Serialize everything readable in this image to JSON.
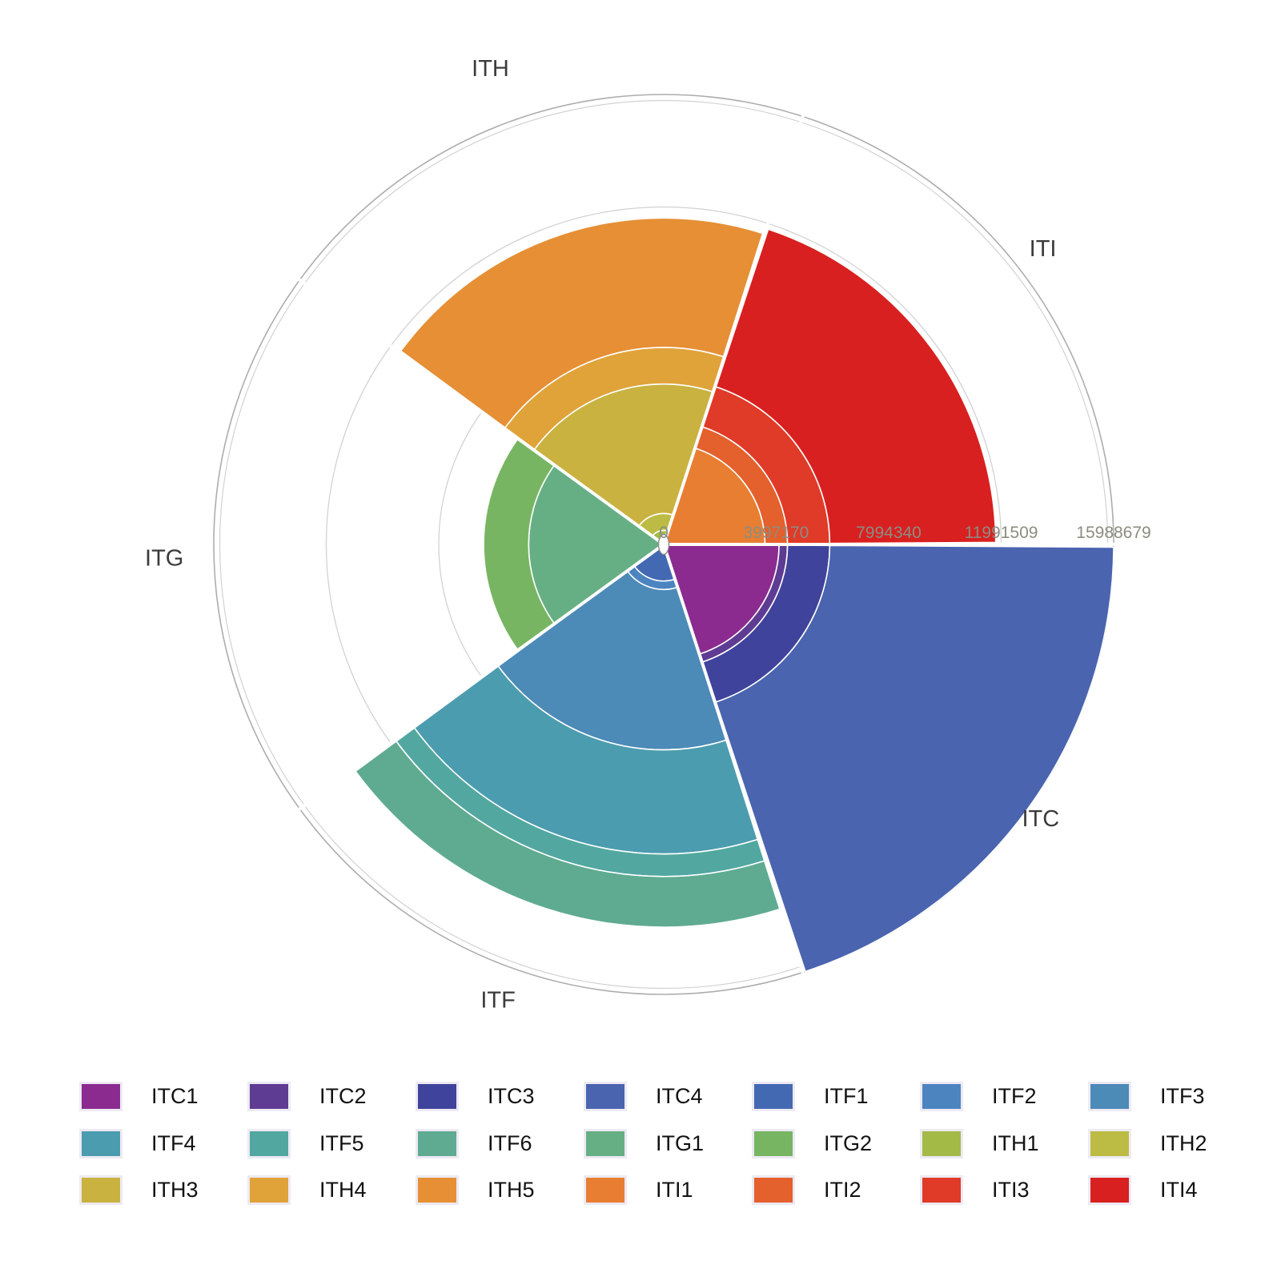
{
  "chart_data": {
    "type": "bar",
    "coord": "polar",
    "title": "",
    "radial_axis": {
      "tick_values": [
        0,
        3997170,
        7994340,
        11991509,
        15988679
      ],
      "tick_labels": [
        "0",
        "3997170",
        "7994340",
        "11991509",
        "15988679"
      ],
      "max": 15988679,
      "grid": true
    },
    "sectors": [
      {
        "name": "ITI",
        "start_angle": 0,
        "end_angle": 72,
        "label_angle": 38,
        "label_radius": 601,
        "segments": [
          {
            "label": "ITI1",
            "value": 3600000,
            "color": "#E87E32"
          },
          {
            "label": "ITI2",
            "value": 800000,
            "color": "#E4602C"
          },
          {
            "label": "ITI3",
            "value": 1500000,
            "color": "#E03A29"
          },
          {
            "label": "ITI4",
            "value": 5900000,
            "color": "#D92020"
          }
        ],
        "total": 11800000
      },
      {
        "name": "ITH",
        "start_angle": 72,
        "end_angle": 144,
        "label_angle": 110,
        "label_radius": 633,
        "segments": [
          {
            "label": "ITH1",
            "value": 500000,
            "color": "#A3BA47"
          },
          {
            "label": "ITH2",
            "value": 600000,
            "color": "#BCBC45"
          },
          {
            "label": "ITH3",
            "value": 4600000,
            "color": "#C9B240"
          },
          {
            "label": "ITH4",
            "value": 1300000,
            "color": "#E0A33A"
          },
          {
            "label": "ITH5",
            "value": 4600000,
            "color": "#E68F35"
          }
        ],
        "total": 11600000
      },
      {
        "name": "ITG",
        "start_angle": 144,
        "end_angle": 216,
        "label_angle": 181.5,
        "label_radius": 624,
        "segments": [
          {
            "label": "ITG1",
            "value": 4800000,
            "color": "#66AF85"
          },
          {
            "label": "ITG2",
            "value": 1600000,
            "color": "#78B562"
          }
        ],
        "total": 6400000
      },
      {
        "name": "ITF",
        "start_angle": 216,
        "end_angle": 288,
        "label_angle": 250,
        "label_radius": 605,
        "segments": [
          {
            "label": "ITF1",
            "value": 1300000,
            "color": "#4469B3"
          },
          {
            "label": "ITF2",
            "value": 300000,
            "color": "#4C84C0"
          },
          {
            "label": "ITF3",
            "value": 5700000,
            "color": "#4C8AB8"
          },
          {
            "label": "ITF4",
            "value": 3700000,
            "color": "#4C9CAF"
          },
          {
            "label": "ITF5",
            "value": 800000,
            "color": "#52A8A0"
          },
          {
            "label": "ITF6",
            "value": 1800000,
            "color": "#5FAB92"
          }
        ],
        "total": 13600000
      },
      {
        "name": "ITC",
        "start_angle": 288,
        "end_angle": 360,
        "label_angle": 324,
        "label_radius": 582,
        "segments": [
          {
            "label": "ITC1",
            "value": 4100000,
            "color": "#8B2B8F"
          },
          {
            "label": "ITC2",
            "value": 300000,
            "color": "#5E3C93"
          },
          {
            "label": "ITC3",
            "value": 1500000,
            "color": "#40439B"
          },
          {
            "label": "ITC4",
            "value": 10088679,
            "color": "#4A64AF"
          }
        ],
        "total": 15988679
      }
    ],
    "legend_order": [
      "ITC1",
      "ITC2",
      "ITC3",
      "ITC4",
      "ITF1",
      "ITF2",
      "ITF3",
      "ITF4",
      "ITF5",
      "ITF6",
      "ITG1",
      "ITG2",
      "ITH1",
      "ITH2",
      "ITH3",
      "ITH4",
      "ITH5",
      "ITI1",
      "ITI2",
      "ITI3",
      "ITI4"
    ],
    "legend_position": "bottom",
    "colors": {
      "grid_line": "#D2D2D2",
      "outer_ring": "#ADADAD",
      "tick_text": "#8C8C82",
      "category_text": "#3B3B3B",
      "background": "#FFFFFF"
    }
  }
}
